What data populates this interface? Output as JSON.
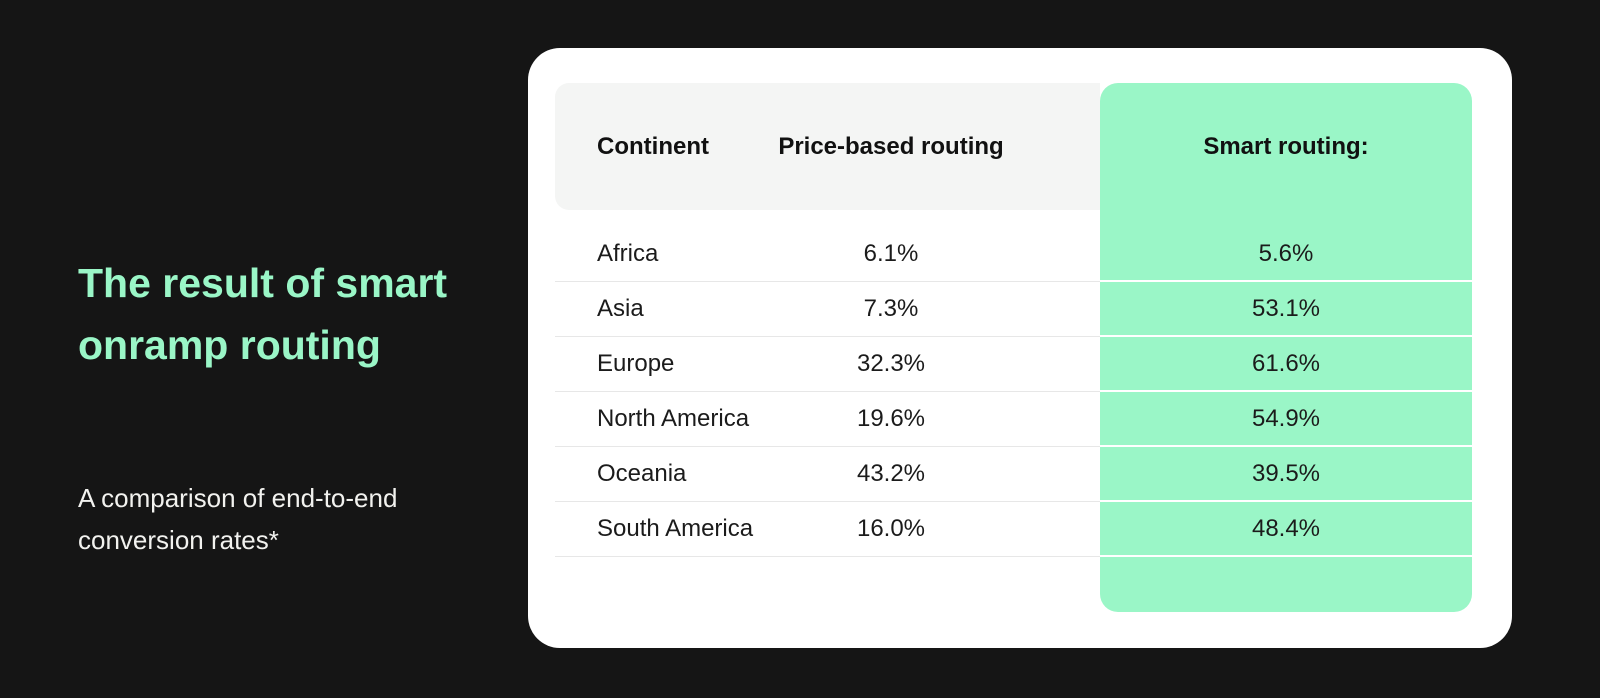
{
  "colors": {
    "background": "#151515",
    "accent_mint": "#9af6c7",
    "card_white": "#ffffff",
    "header_gray": "#f4f5f4",
    "separator_gray": "#e7e7e7",
    "text_dark": "#1b1b1b",
    "title_mint": "#9af6c7",
    "subtitle_white": "#f2f2ef"
  },
  "left": {
    "title": "The result of smart onramp routing",
    "subtitle": "A comparison of end-to-end conversion rates*"
  },
  "table": {
    "columns": {
      "continent": "Continent",
      "price": "Price-based routing",
      "smart": "Smart routing:"
    },
    "rows": [
      {
        "continent": "Africa",
        "price": "6.1%",
        "smart": "5.6%"
      },
      {
        "continent": "Asia",
        "price": "7.3%",
        "smart": "53.1%"
      },
      {
        "continent": "Europe",
        "price": "32.3%",
        "smart": "61.6%"
      },
      {
        "continent": "North America",
        "price": "19.6%",
        "smart": "54.9%"
      },
      {
        "continent": "Oceania",
        "price": "43.2%",
        "smart": "39.5%"
      },
      {
        "continent": "South America",
        "price": "16.0%",
        "smart": "48.4%"
      }
    ]
  },
  "chart_data": {
    "type": "table",
    "title": "The result of smart onramp routing",
    "subtitle": "A comparison of end-to-end conversion rates*",
    "columns": [
      "Continent",
      "Price-based routing",
      "Smart routing:"
    ],
    "categories": [
      "Africa",
      "Asia",
      "Europe",
      "North America",
      "Oceania",
      "South America"
    ],
    "series": [
      {
        "name": "Price-based routing",
        "values": [
          6.1,
          7.3,
          32.3,
          19.6,
          43.2,
          16.0
        ]
      },
      {
        "name": "Smart routing",
        "values": [
          5.6,
          53.1,
          61.6,
          54.9,
          39.5,
          48.4
        ]
      }
    ],
    "unit": "%",
    "highlight_column": "Smart routing:",
    "highlight_color": "#9af6c7"
  }
}
